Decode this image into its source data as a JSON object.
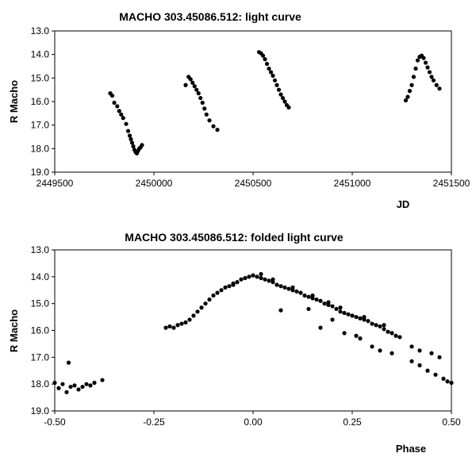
{
  "chart_data": [
    {
      "type": "scatter",
      "title": "MACHO 303.45086.512: light curve",
      "xlabel": "JD",
      "ylabel": "R Macho",
      "xlim": [
        2449500,
        2451500
      ],
      "ylim": [
        13.0,
        19.0
      ],
      "y_inverted": true,
      "grid": false,
      "legend": "none",
      "x_ticks": [
        "2449500",
        "2450000",
        "2450500",
        "2451000",
        "2451500"
      ],
      "y_ticks": [
        "13.0",
        "14.0",
        "15.0",
        "16.0",
        "17.0",
        "18.0",
        "19.0"
      ],
      "marker_color": "#000000",
      "points": [
        [
          2449780,
          15.65
        ],
        [
          2449790,
          15.75
        ],
        [
          2449800,
          16.05
        ],
        [
          2449815,
          16.2
        ],
        [
          2449825,
          16.4
        ],
        [
          2449835,
          16.55
        ],
        [
          2449845,
          16.7
        ],
        [
          2449860,
          16.95
        ],
        [
          2449870,
          17.25
        ],
        [
          2449878,
          17.45
        ],
        [
          2449884,
          17.6
        ],
        [
          2449890,
          17.75
        ],
        [
          2449896,
          17.9
        ],
        [
          2449902,
          18.05
        ],
        [
          2449908,
          18.15
        ],
        [
          2449914,
          18.2
        ],
        [
          2449920,
          18.1
        ],
        [
          2449926,
          18.0
        ],
        [
          2449932,
          17.95
        ],
        [
          2449940,
          17.85
        ],
        [
          2450160,
          15.3
        ],
        [
          2450175,
          14.95
        ],
        [
          2450185,
          15.05
        ],
        [
          2450195,
          15.2
        ],
        [
          2450205,
          15.35
        ],
        [
          2450215,
          15.5
        ],
        [
          2450225,
          15.65
        ],
        [
          2450235,
          15.85
        ],
        [
          2450245,
          16.05
        ],
        [
          2450255,
          16.3
        ],
        [
          2450265,
          16.55
        ],
        [
          2450280,
          16.8
        ],
        [
          2450300,
          17.05
        ],
        [
          2450320,
          17.2
        ],
        [
          2450530,
          13.9
        ],
        [
          2450540,
          13.95
        ],
        [
          2450550,
          14.05
        ],
        [
          2450560,
          14.2
        ],
        [
          2450570,
          14.4
        ],
        [
          2450580,
          14.6
        ],
        [
          2450590,
          14.75
        ],
        [
          2450600,
          14.9
        ],
        [
          2450610,
          15.1
        ],
        [
          2450620,
          15.3
        ],
        [
          2450630,
          15.5
        ],
        [
          2450640,
          15.7
        ],
        [
          2450650,
          15.85
        ],
        [
          2450660,
          16.0
        ],
        [
          2450670,
          16.15
        ],
        [
          2450680,
          16.25
        ],
        [
          2451270,
          15.95
        ],
        [
          2451280,
          15.8
        ],
        [
          2451290,
          15.55
        ],
        [
          2451300,
          15.3
        ],
        [
          2451310,
          14.95
        ],
        [
          2451320,
          14.6
        ],
        [
          2451330,
          14.25
        ],
        [
          2451340,
          14.1
        ],
        [
          2451350,
          14.05
        ],
        [
          2451360,
          14.15
        ],
        [
          2451370,
          14.35
        ],
        [
          2451380,
          14.55
        ],
        [
          2451390,
          14.75
        ],
        [
          2451400,
          14.95
        ],
        [
          2451410,
          15.1
        ],
        [
          2451425,
          15.3
        ],
        [
          2451440,
          15.45
        ]
      ]
    },
    {
      "type": "scatter",
      "title": "MACHO 303.45086.512: folded light curve",
      "xlabel": "Phase",
      "ylabel": "R Macho",
      "xlim": [
        -0.5,
        0.5
      ],
      "ylim": [
        13.0,
        19.0
      ],
      "y_inverted": true,
      "grid": false,
      "legend": "none",
      "x_ticks": [
        "-0.50",
        "-0.25",
        "0.00",
        "0.25",
        "0.50"
      ],
      "y_ticks": [
        "13.0",
        "14.0",
        "15.0",
        "16.0",
        "17.0",
        "18.0",
        "19.0"
      ],
      "marker_color": "#000000",
      "points": [
        [
          -0.5,
          17.95
        ],
        [
          -0.49,
          18.15
        ],
        [
          -0.48,
          18.0
        ],
        [
          -0.47,
          18.3
        ],
        [
          -0.465,
          17.2
        ],
        [
          -0.46,
          18.1
        ],
        [
          -0.45,
          18.05
        ],
        [
          -0.44,
          18.2
        ],
        [
          -0.43,
          18.1
        ],
        [
          -0.42,
          18.0
        ],
        [
          -0.41,
          18.05
        ],
        [
          -0.4,
          17.95
        ],
        [
          -0.38,
          17.85
        ],
        [
          -0.22,
          15.9
        ],
        [
          -0.21,
          15.85
        ],
        [
          -0.2,
          15.9
        ],
        [
          -0.19,
          15.8
        ],
        [
          -0.18,
          15.75
        ],
        [
          -0.17,
          15.7
        ],
        [
          -0.16,
          15.6
        ],
        [
          -0.15,
          15.45
        ],
        [
          -0.14,
          15.3
        ],
        [
          -0.13,
          15.15
        ],
        [
          -0.12,
          15.0
        ],
        [
          -0.11,
          14.85
        ],
        [
          -0.1,
          14.7
        ],
        [
          -0.09,
          14.6
        ],
        [
          -0.08,
          14.5
        ],
        [
          -0.07,
          14.4
        ],
        [
          -0.06,
          14.35
        ],
        [
          -0.05,
          14.3
        ],
        [
          -0.04,
          14.2
        ],
        [
          -0.03,
          14.1
        ],
        [
          -0.02,
          14.05
        ],
        [
          -0.01,
          14.0
        ],
        [
          0.0,
          13.95
        ],
        [
          0.01,
          14.0
        ],
        [
          0.02,
          14.05
        ],
        [
          0.03,
          14.1
        ],
        [
          0.04,
          14.15
        ],
        [
          0.05,
          14.2
        ],
        [
          0.06,
          14.3
        ],
        [
          0.07,
          14.35
        ],
        [
          0.08,
          14.4
        ],
        [
          0.09,
          14.45
        ],
        [
          0.1,
          14.5
        ],
        [
          0.11,
          14.55
        ],
        [
          0.12,
          14.6
        ],
        [
          0.13,
          14.7
        ],
        [
          0.14,
          14.75
        ],
        [
          0.15,
          14.8
        ],
        [
          0.16,
          14.85
        ],
        [
          0.17,
          14.9
        ],
        [
          0.18,
          15.0
        ],
        [
          0.19,
          15.05
        ],
        [
          0.2,
          15.1
        ],
        [
          0.21,
          15.2
        ],
        [
          0.22,
          15.3
        ],
        [
          0.23,
          15.35
        ],
        [
          0.24,
          15.4
        ],
        [
          0.25,
          15.45
        ],
        [
          0.26,
          15.5
        ],
        [
          0.27,
          15.55
        ],
        [
          0.28,
          15.6
        ],
        [
          0.29,
          15.65
        ],
        [
          0.3,
          15.75
        ],
        [
          0.31,
          15.8
        ],
        [
          0.32,
          15.85
        ],
        [
          0.33,
          15.95
        ],
        [
          0.34,
          16.05
        ],
        [
          0.35,
          16.1
        ],
        [
          0.36,
          16.2
        ],
        [
          0.37,
          16.25
        ],
        [
          0.07,
          15.25
        ],
        [
          0.14,
          15.2
        ],
        [
          0.17,
          15.9
        ],
        [
          0.2,
          15.6
        ],
        [
          0.23,
          16.1
        ],
        [
          0.26,
          16.2
        ],
        [
          0.27,
          16.3
        ],
        [
          0.3,
          16.6
        ],
        [
          0.32,
          16.75
        ],
        [
          0.35,
          16.85
        ],
        [
          0.4,
          17.15
        ],
        [
          0.42,
          17.3
        ],
        [
          0.44,
          17.5
        ],
        [
          0.46,
          17.65
        ],
        [
          0.48,
          17.8
        ],
        [
          0.49,
          17.9
        ],
        [
          0.5,
          17.95
        ],
        [
          0.4,
          16.6
        ],
        [
          0.42,
          16.75
        ],
        [
          0.45,
          16.85
        ],
        [
          0.47,
          17.0
        ],
        [
          -0.05,
          14.25
        ],
        [
          0.02,
          13.9
        ],
        [
          0.05,
          14.1
        ],
        [
          0.1,
          14.4
        ],
        [
          0.15,
          14.7
        ],
        [
          0.19,
          14.95
        ],
        [
          0.22,
          15.15
        ],
        [
          0.28,
          15.5
        ],
        [
          0.33,
          15.8
        ]
      ]
    }
  ]
}
